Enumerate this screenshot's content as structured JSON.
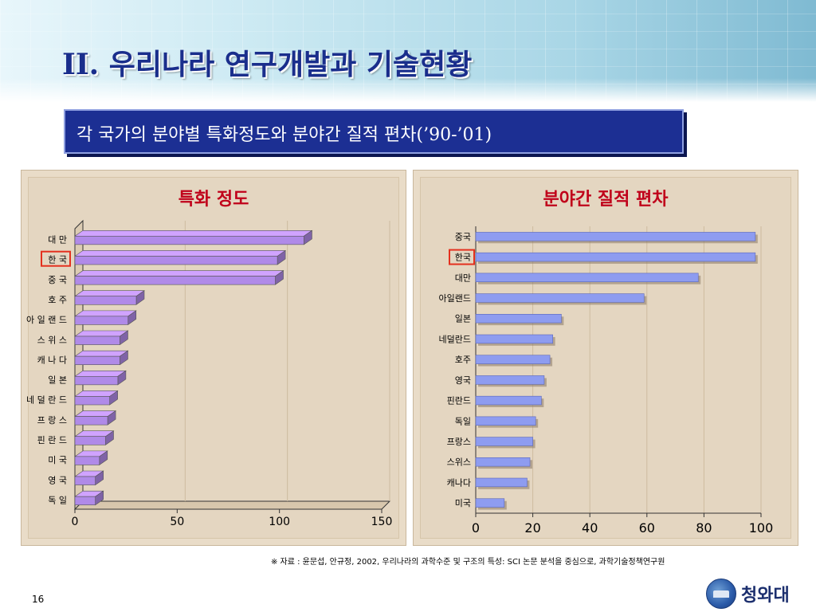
{
  "slide": {
    "title": "II. 우리나라 연구개발과 기술현황",
    "subtitle": "각 국가의 분야별 특화정도와 분야간 질적 편차(’90-’01)",
    "source": "※ 자료 : 윤문섭, 안규정, 2002, 우리나라의 과학수준 및 구조의 특성: SCI 논문 분석을 중심으로, 과학기술정책연구원",
    "page_number": "16",
    "logo_text": "청와대"
  },
  "colors": {
    "bar_left": "#b08ae8",
    "bar_right": "#8e9cf0",
    "highlight_box": "#e4301e",
    "panel_title": "#c0001a"
  },
  "chart_data": [
    {
      "type": "bar",
      "orientation": "horizontal",
      "title": "특화 정도",
      "categories": [
        "대 만",
        "한 국",
        "중 국",
        "호 주",
        "아 일 랜 드",
        "스 위 스",
        "캐 나 다",
        "일 본",
        "네 덜 란 드",
        "프 랑 스",
        "핀 란 드",
        "미 국",
        "영 국",
        "독 일"
      ],
      "values": [
        112,
        99,
        98,
        30,
        26,
        22,
        22,
        21,
        17,
        16,
        15,
        12,
        10,
        10
      ],
      "highlight": "한 국",
      "xlim": [
        0,
        150
      ],
      "xticks": [
        "0",
        "50",
        "100",
        "150"
      ],
      "style": "3d",
      "grid": true
    },
    {
      "type": "bar",
      "orientation": "horizontal",
      "title": "분야간 질적 편차",
      "categories": [
        "중국",
        "한국",
        "대만",
        "아일랜드",
        "일본",
        "네덜란드",
        "호주",
        "영국",
        "핀란드",
        "독일",
        "프랑스",
        "스위스",
        "캐나다",
        "미국"
      ],
      "values": [
        98,
        98,
        78,
        59,
        30,
        27,
        26,
        24,
        23,
        21,
        20,
        19,
        18,
        10
      ],
      "highlight": "한국",
      "xlim": [
        0,
        100
      ],
      "xticks": [
        "0",
        "20",
        "40",
        "60",
        "80",
        "100"
      ],
      "grid": true
    }
  ]
}
